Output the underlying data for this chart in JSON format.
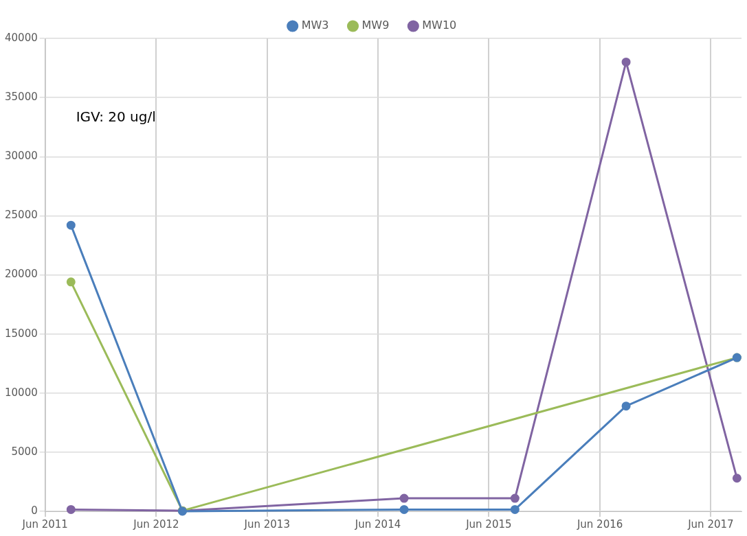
{
  "chart_data": {
    "type": "line",
    "annotations": [
      "IGV: 20 ug/l"
    ],
    "series": [
      {
        "name": "MW3",
        "color": "#4a7ebb",
        "x": [
          "2011-08-25",
          "2012-08-26",
          "2014-08-26",
          "2015-08-26",
          "2016-08-26",
          "2017-08-26"
        ],
        "values": [
          24200,
          0,
          150,
          150,
          8900,
          13000
        ]
      },
      {
        "name": "MW9",
        "color": "#9bbb59",
        "x": [
          "2011-08-25",
          "2012-08-26",
          "2017-08-26"
        ],
        "values": [
          19400,
          50,
          13000
        ]
      },
      {
        "name": "MW10",
        "color": "#8064a2",
        "x": [
          "2011-08-25",
          "2012-08-26",
          "2014-08-26",
          "2015-08-26",
          "2016-08-26",
          "2017-08-26"
        ],
        "values": [
          150,
          50,
          1100,
          1100,
          38000,
          2800
        ]
      }
    ],
    "xlim": [
      "2011-06-01",
      "2017-09-10"
    ],
    "xticks": [
      {
        "value": "2011-06-01",
        "label": "Jun 2011"
      },
      {
        "value": "2012-06-01",
        "label": "Jun 2012"
      },
      {
        "value": "2013-06-01",
        "label": "Jun 2013"
      },
      {
        "value": "2014-06-01",
        "label": "Jun 2014"
      },
      {
        "value": "2015-06-01",
        "label": "Jun 2015"
      },
      {
        "value": "2016-06-01",
        "label": "Jun 2016"
      },
      {
        "value": "2017-06-01",
        "label": "Jun 2017"
      }
    ],
    "ylim": [
      0,
      40000
    ],
    "yticks": [
      0,
      5000,
      10000,
      15000,
      20000,
      25000,
      30000,
      35000,
      40000
    ],
    "grid": true,
    "legend": "top",
    "marker": "circle",
    "line_style": "solid"
  }
}
